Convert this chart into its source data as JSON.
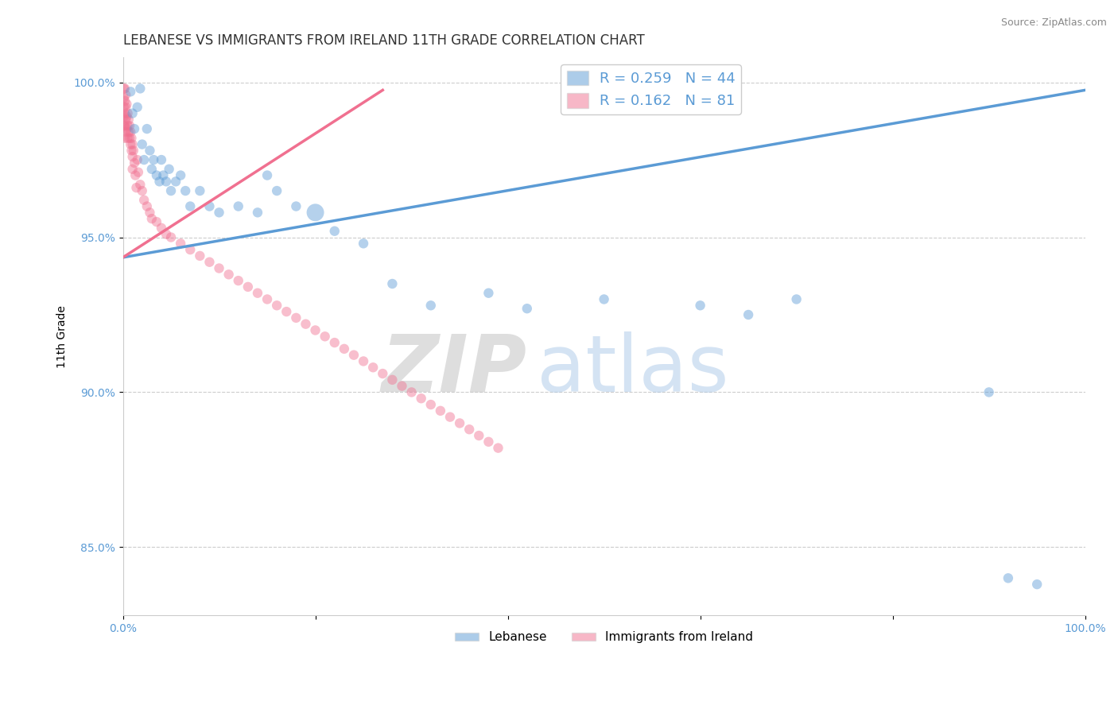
{
  "title": "LEBANESE VS IMMIGRANTS FROM IRELAND 11TH GRADE CORRELATION CHART",
  "source_text": "Source: ZipAtlas.com",
  "xlabel": "",
  "ylabel": "11th Grade",
  "watermark_zip": "ZIP",
  "watermark_atlas": "atlas",
  "xlim": [
    0.0,
    1.0
  ],
  "ylim": [
    0.828,
    1.008
  ],
  "ytick_values": [
    0.85,
    0.9,
    0.95,
    1.0
  ],
  "yticklabels": [
    "85.0%",
    "90.0%",
    "95.0%",
    "100.0%"
  ],
  "xtick_vals": [
    0.0,
    0.2,
    0.4,
    0.6,
    0.8,
    1.0
  ],
  "xticklabels": [
    "0.0%",
    "",
    "",
    "",
    "",
    "100.0%"
  ],
  "blue_color": "#5b9bd5",
  "pink_color": "#f07090",
  "blue_scatter_x": [
    0.008,
    0.01,
    0.012,
    0.015,
    0.018,
    0.02,
    0.022,
    0.025,
    0.028,
    0.03,
    0.032,
    0.035,
    0.038,
    0.04,
    0.042,
    0.045,
    0.048,
    0.05,
    0.055,
    0.06,
    0.065,
    0.07,
    0.08,
    0.09,
    0.1,
    0.12,
    0.14,
    0.15,
    0.16,
    0.18,
    0.2,
    0.22,
    0.25,
    0.28,
    0.32,
    0.38,
    0.42,
    0.5,
    0.6,
    0.65,
    0.7,
    0.9,
    0.92,
    0.95
  ],
  "blue_scatter_y": [
    0.997,
    0.99,
    0.985,
    0.992,
    0.998,
    0.98,
    0.975,
    0.985,
    0.978,
    0.972,
    0.975,
    0.97,
    0.968,
    0.975,
    0.97,
    0.968,
    0.972,
    0.965,
    0.968,
    0.97,
    0.965,
    0.96,
    0.965,
    0.96,
    0.958,
    0.96,
    0.958,
    0.97,
    0.965,
    0.96,
    0.958,
    0.952,
    0.948,
    0.935,
    0.928,
    0.932,
    0.927,
    0.93,
    0.928,
    0.925,
    0.93,
    0.9,
    0.84,
    0.838
  ],
  "blue_scatter_sizes": [
    80,
    80,
    80,
    80,
    80,
    80,
    80,
    80,
    80,
    80,
    80,
    80,
    80,
    80,
    80,
    80,
    80,
    80,
    80,
    80,
    80,
    80,
    80,
    80,
    80,
    80,
    80,
    80,
    80,
    80,
    250,
    80,
    80,
    80,
    80,
    80,
    80,
    80,
    80,
    80,
    80,
    80,
    80,
    80
  ],
  "pink_scatter_x": [
    0.001,
    0.001,
    0.001,
    0.001,
    0.001,
    0.002,
    0.002,
    0.002,
    0.002,
    0.002,
    0.003,
    0.003,
    0.003,
    0.003,
    0.004,
    0.004,
    0.004,
    0.005,
    0.005,
    0.005,
    0.006,
    0.006,
    0.007,
    0.007,
    0.008,
    0.008,
    0.009,
    0.009,
    0.01,
    0.01,
    0.01,
    0.011,
    0.012,
    0.013,
    0.014,
    0.015,
    0.016,
    0.018,
    0.02,
    0.022,
    0.025,
    0.028,
    0.03,
    0.035,
    0.04,
    0.045,
    0.05,
    0.06,
    0.07,
    0.08,
    0.09,
    0.1,
    0.11,
    0.12,
    0.13,
    0.14,
    0.15,
    0.16,
    0.17,
    0.18,
    0.19,
    0.2,
    0.21,
    0.22,
    0.23,
    0.24,
    0.25,
    0.26,
    0.27,
    0.28,
    0.29,
    0.3,
    0.31,
    0.32,
    0.33,
    0.34,
    0.35,
    0.36,
    0.37,
    0.38,
    0.39
  ],
  "pink_scatter_y": [
    0.998,
    0.995,
    0.992,
    0.989,
    0.986,
    0.998,
    0.994,
    0.99,
    0.986,
    0.982,
    0.996,
    0.992,
    0.988,
    0.984,
    0.993,
    0.989,
    0.985,
    0.99,
    0.986,
    0.982,
    0.988,
    0.984,
    0.986,
    0.982,
    0.984,
    0.98,
    0.982,
    0.978,
    0.98,
    0.976,
    0.972,
    0.978,
    0.974,
    0.97,
    0.966,
    0.975,
    0.971,
    0.967,
    0.965,
    0.962,
    0.96,
    0.958,
    0.956,
    0.955,
    0.953,
    0.951,
    0.95,
    0.948,
    0.946,
    0.944,
    0.942,
    0.94,
    0.938,
    0.936,
    0.934,
    0.932,
    0.93,
    0.928,
    0.926,
    0.924,
    0.922,
    0.92,
    0.918,
    0.916,
    0.914,
    0.912,
    0.91,
    0.908,
    0.906,
    0.904,
    0.902,
    0.9,
    0.898,
    0.896,
    0.894,
    0.892,
    0.89,
    0.888,
    0.886,
    0.884,
    0.882
  ],
  "pink_scatter_sizes": [
    80,
    80,
    80,
    80,
    80,
    80,
    80,
    80,
    80,
    80,
    80,
    80,
    80,
    80,
    80,
    80,
    80,
    80,
    80,
    80,
    80,
    80,
    80,
    80,
    80,
    80,
    80,
    80,
    80,
    80,
    80,
    80,
    80,
    80,
    80,
    80,
    80,
    80,
    80,
    80,
    80,
    80,
    80,
    80,
    80,
    80,
    80,
    80,
    80,
    80,
    80,
    80,
    80,
    80,
    80,
    80,
    80,
    80,
    80,
    80,
    80,
    80,
    80,
    80,
    80,
    80,
    80,
    80,
    80,
    80,
    80,
    80,
    80,
    80,
    80,
    80,
    80,
    80,
    80,
    80,
    80
  ],
  "blue_trend_x": [
    0.0,
    1.0
  ],
  "blue_trend_y": [
    0.9435,
    0.9975
  ],
  "pink_trend_x": [
    0.0,
    0.27
  ],
  "pink_trend_y": [
    0.9435,
    0.9975
  ],
  "grid_color": "#cccccc",
  "background_color": "#ffffff",
  "title_fontsize": 12,
  "label_fontsize": 10,
  "tick_fontsize": 10,
  "legend_fontsize": 13
}
